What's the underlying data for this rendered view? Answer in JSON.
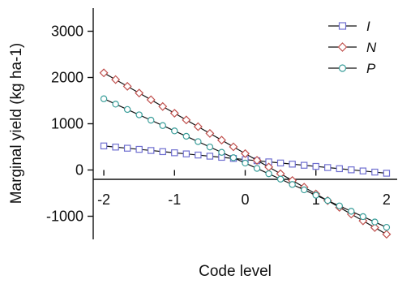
{
  "chart_data": {
    "type": "line",
    "xlabel": "Code level",
    "ylabel": "Marginal yield (kg ha-1)",
    "xlim": [
      -2.15,
      2.15
    ],
    "ylim": [
      -1500,
      3500
    ],
    "x_ticks": [
      -2,
      -1,
      0,
      1,
      2
    ],
    "y_ticks": [
      -1000,
      0,
      1000,
      2000,
      3000
    ],
    "x_tick_labels": [
      "-2",
      "-1",
      "0",
      "1",
      "2"
    ],
    "y_tick_labels": [
      "-1000",
      "0",
      "1000",
      "2000",
      "3000"
    ],
    "grid": false,
    "legend_position": "top-right",
    "x_points": {
      "start": -2,
      "end": 2,
      "count": 25
    },
    "series": [
      {
        "name": "I",
        "marker": "square",
        "color": "#6f6fd0",
        "fill": "#ffffff",
        "start_value": 520,
        "end_value": -70
      },
      {
        "name": "N",
        "marker": "diamond",
        "color": "#c0504d",
        "fill": "#ffffff",
        "start_value": 2100,
        "end_value": -1390
      },
      {
        "name": "P",
        "marker": "circle",
        "color": "#3a9e9a",
        "fill": "#ffffff",
        "start_value": 1540,
        "end_value": -1240
      }
    ]
  }
}
